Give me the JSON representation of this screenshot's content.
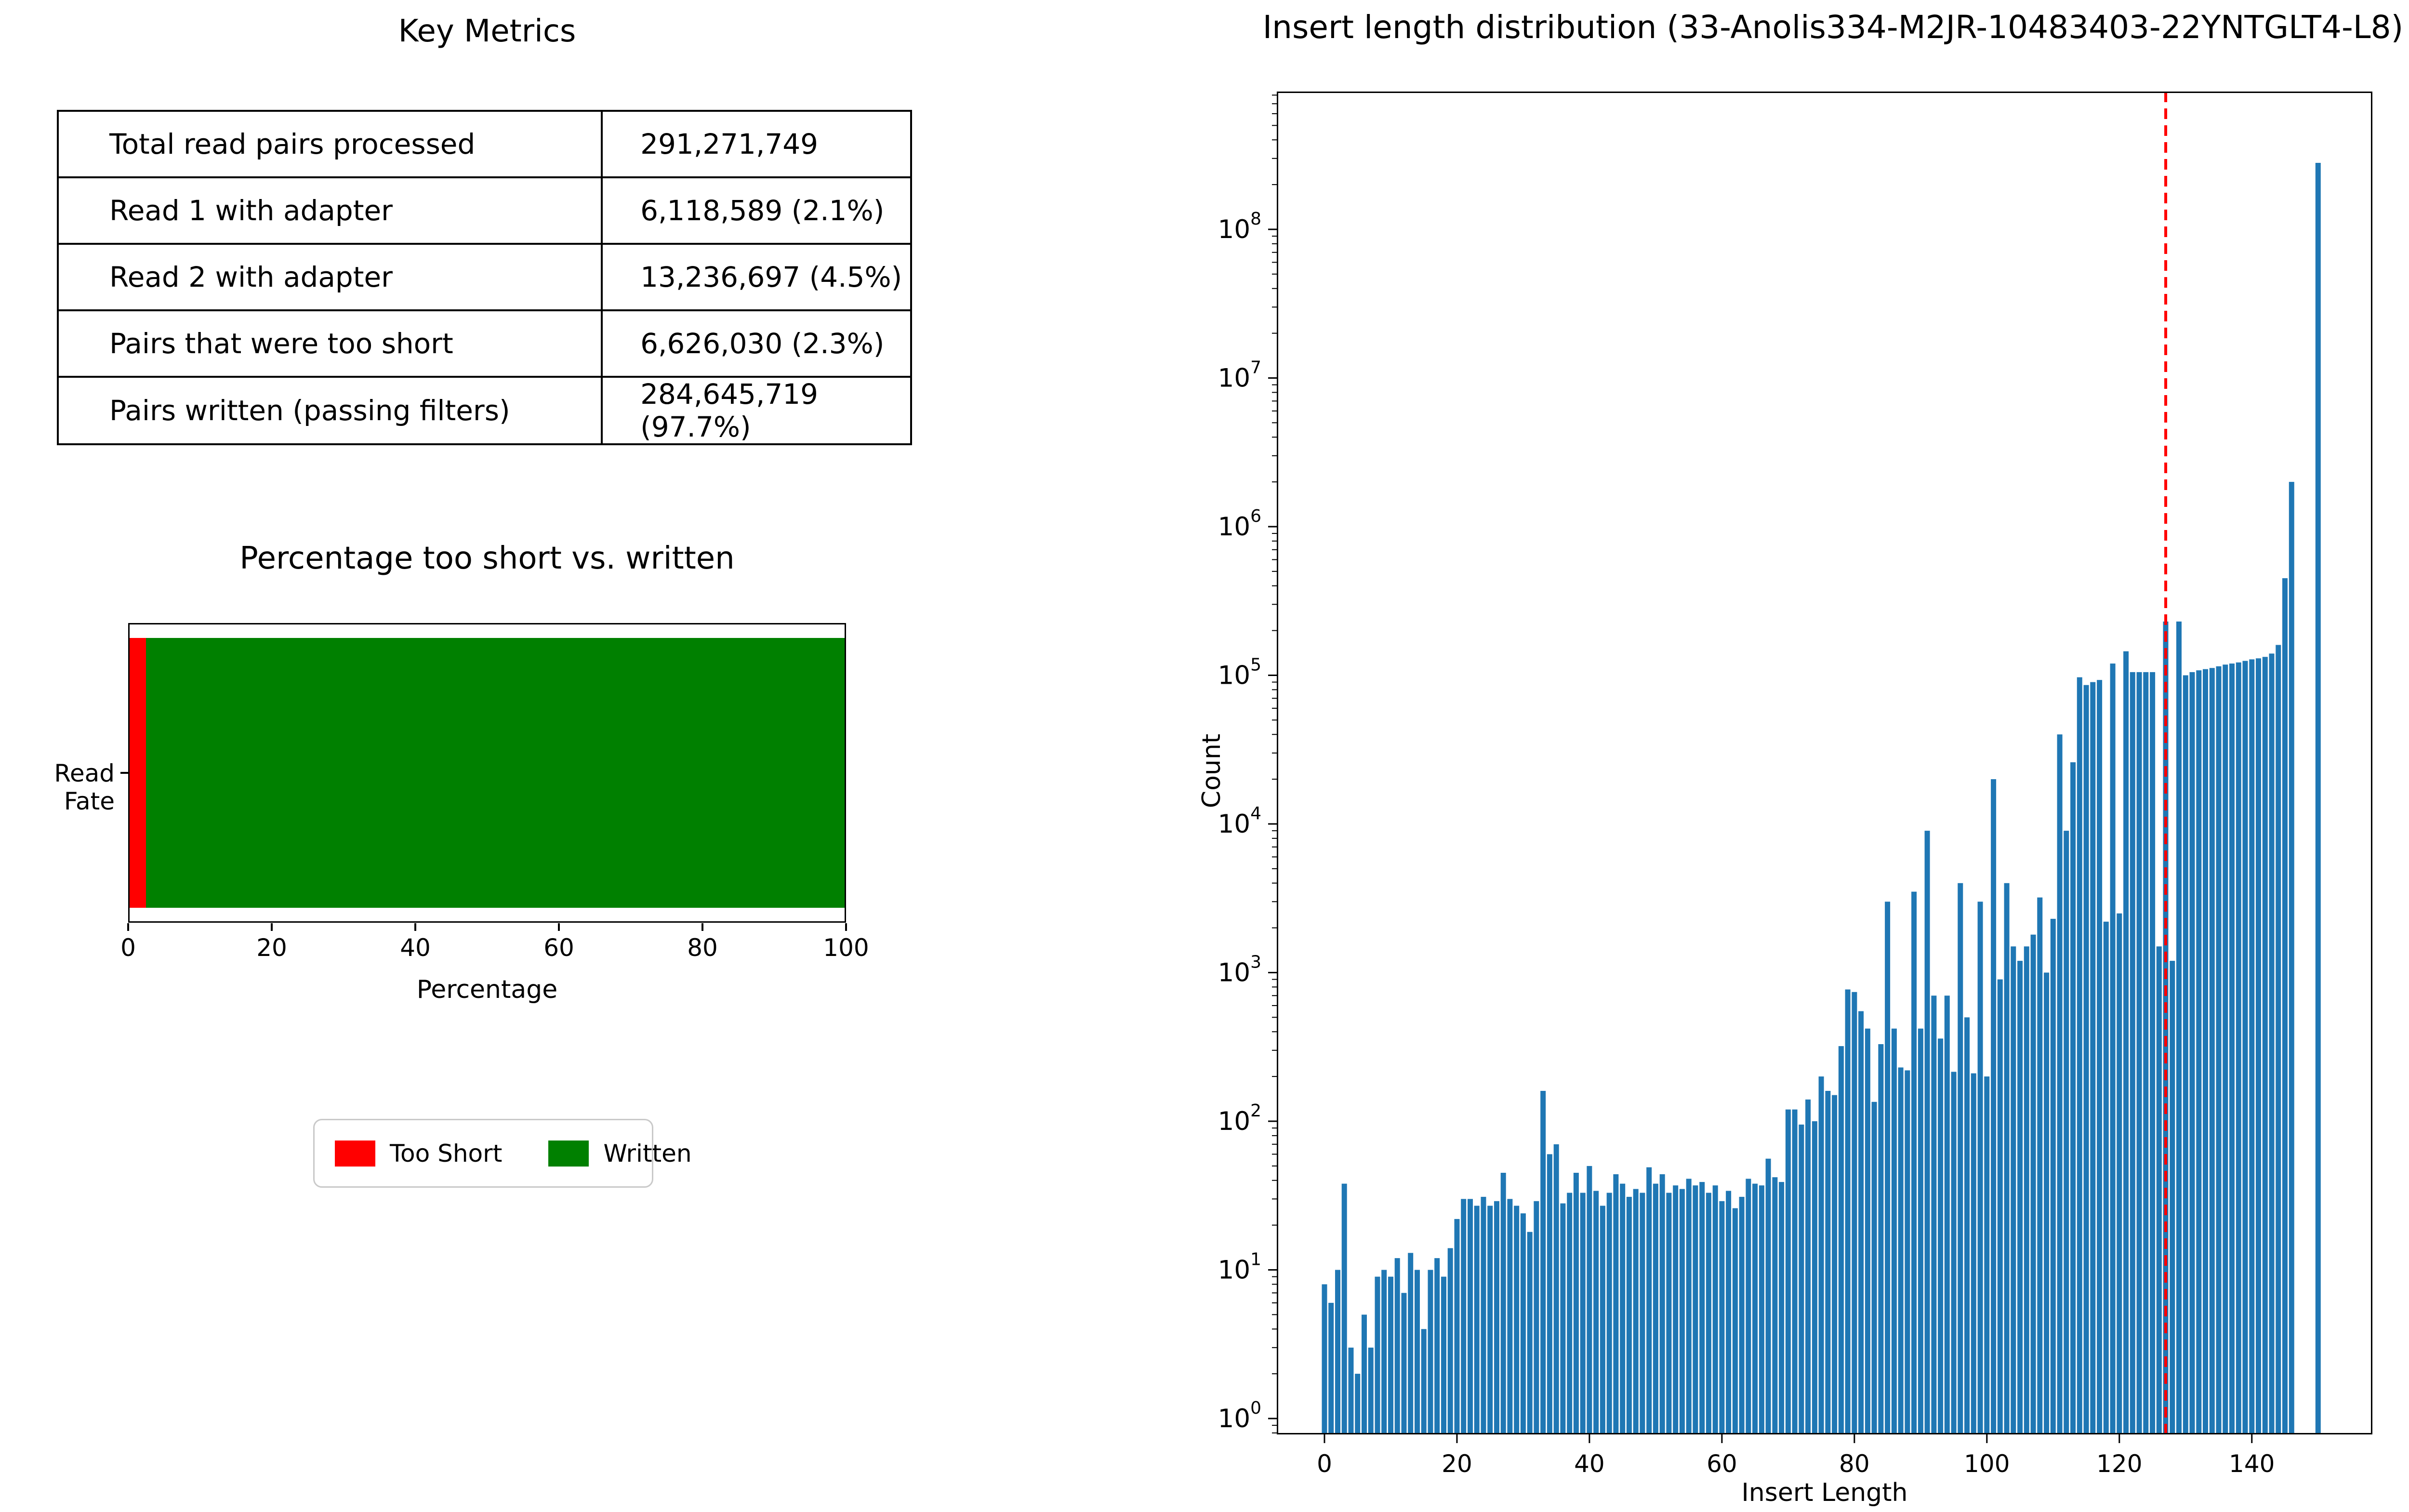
{
  "metrics_table": {
    "title": "Key Metrics",
    "rows": [
      {
        "label": "Total read pairs processed",
        "value": "291,271,749"
      },
      {
        "label": "Read 1 with adapter",
        "value": "6,118,589 (2.1%)"
      },
      {
        "label": "Read 2 with adapter",
        "value": "13,236,697 (4.5%)"
      },
      {
        "label": "Pairs that were too short",
        "value": "6,626,030 (2.3%)"
      },
      {
        "label": "Pairs written (passing filters)",
        "value": "284,645,719 (97.7%)"
      }
    ]
  },
  "chart_data": [
    {
      "type": "bar",
      "orientation": "horizontal-stacked",
      "title": "Percentage too short vs. written",
      "categories": [
        "Read Fate"
      ],
      "series": [
        {
          "name": "Too Short",
          "values": [
            2.3
          ],
          "color": "#ff0000"
        },
        {
          "name": "Written",
          "values": [
            97.7
          ],
          "color": "#008000"
        }
      ],
      "xlabel": "Percentage",
      "xlim": [
        0,
        100
      ],
      "xticks": [
        0,
        20,
        40,
        60,
        80,
        100
      ],
      "grid": false,
      "legend_position": "below"
    },
    {
      "type": "bar",
      "title": "Insert length distribution (33-Anolis334-M2JR-10483403-22YNTGLT4-L8)",
      "xlabel": "Insert Length",
      "ylabel": "Count",
      "yscale": "log",
      "bar_color": "#1f77b4",
      "grid": false,
      "xticks": [
        0,
        20,
        40,
        60,
        80,
        100,
        120,
        140
      ],
      "ytick_exponents": [
        0,
        1,
        2,
        3,
        4,
        5,
        6,
        7,
        8
      ],
      "xlim": [
        -7.2,
        158.2
      ],
      "ylim_exponents": [
        -0.107,
        8.927
      ],
      "vline": {
        "x": 127,
        "color": "#ff0000",
        "style": "dashed"
      },
      "x_start": 0,
      "values": [
        8,
        6,
        10,
        38,
        3,
        2,
        5,
        3,
        9,
        10,
        9,
        12,
        7,
        13,
        10,
        4,
        10,
        12,
        9,
        14,
        22,
        30,
        30,
        27,
        31,
        27,
        29,
        45,
        30,
        27,
        24,
        18,
        29,
        160,
        60,
        70,
        28,
        33,
        45,
        33,
        50,
        34,
        27,
        33,
        44,
        38,
        31,
        35,
        33,
        49,
        38,
        44,
        33,
        37,
        35,
        41,
        37,
        39,
        33,
        37,
        29,
        34,
        26,
        31,
        41,
        38,
        37,
        56,
        42,
        39,
        120,
        120,
        95,
        140,
        100,
        200,
        160,
        150,
        320,
        770,
        740,
        550,
        420,
        135,
        330,
        3000,
        420,
        230,
        220,
        3500,
        420,
        9000,
        700,
        360,
        700,
        215,
        4000,
        500,
        210,
        3000,
        200,
        20000,
        900,
        4000,
        1500,
        1200,
        1500,
        1800,
        3200,
        1000,
        2300,
        40000,
        9000,
        26000,
        97000,
        86000,
        90000,
        93000,
        2200,
        120000,
        2500,
        145000,
        105000,
        105000,
        105000,
        105000,
        1500,
        230000,
        1200,
        230000,
        100000,
        105000,
        108000,
        110000,
        112000,
        115000,
        118000,
        120000,
        122000,
        125000,
        128000,
        130000,
        133000,
        140000,
        160000,
        450000,
        2000000,
        0,
        0,
        0,
        280000000
      ]
    }
  ]
}
